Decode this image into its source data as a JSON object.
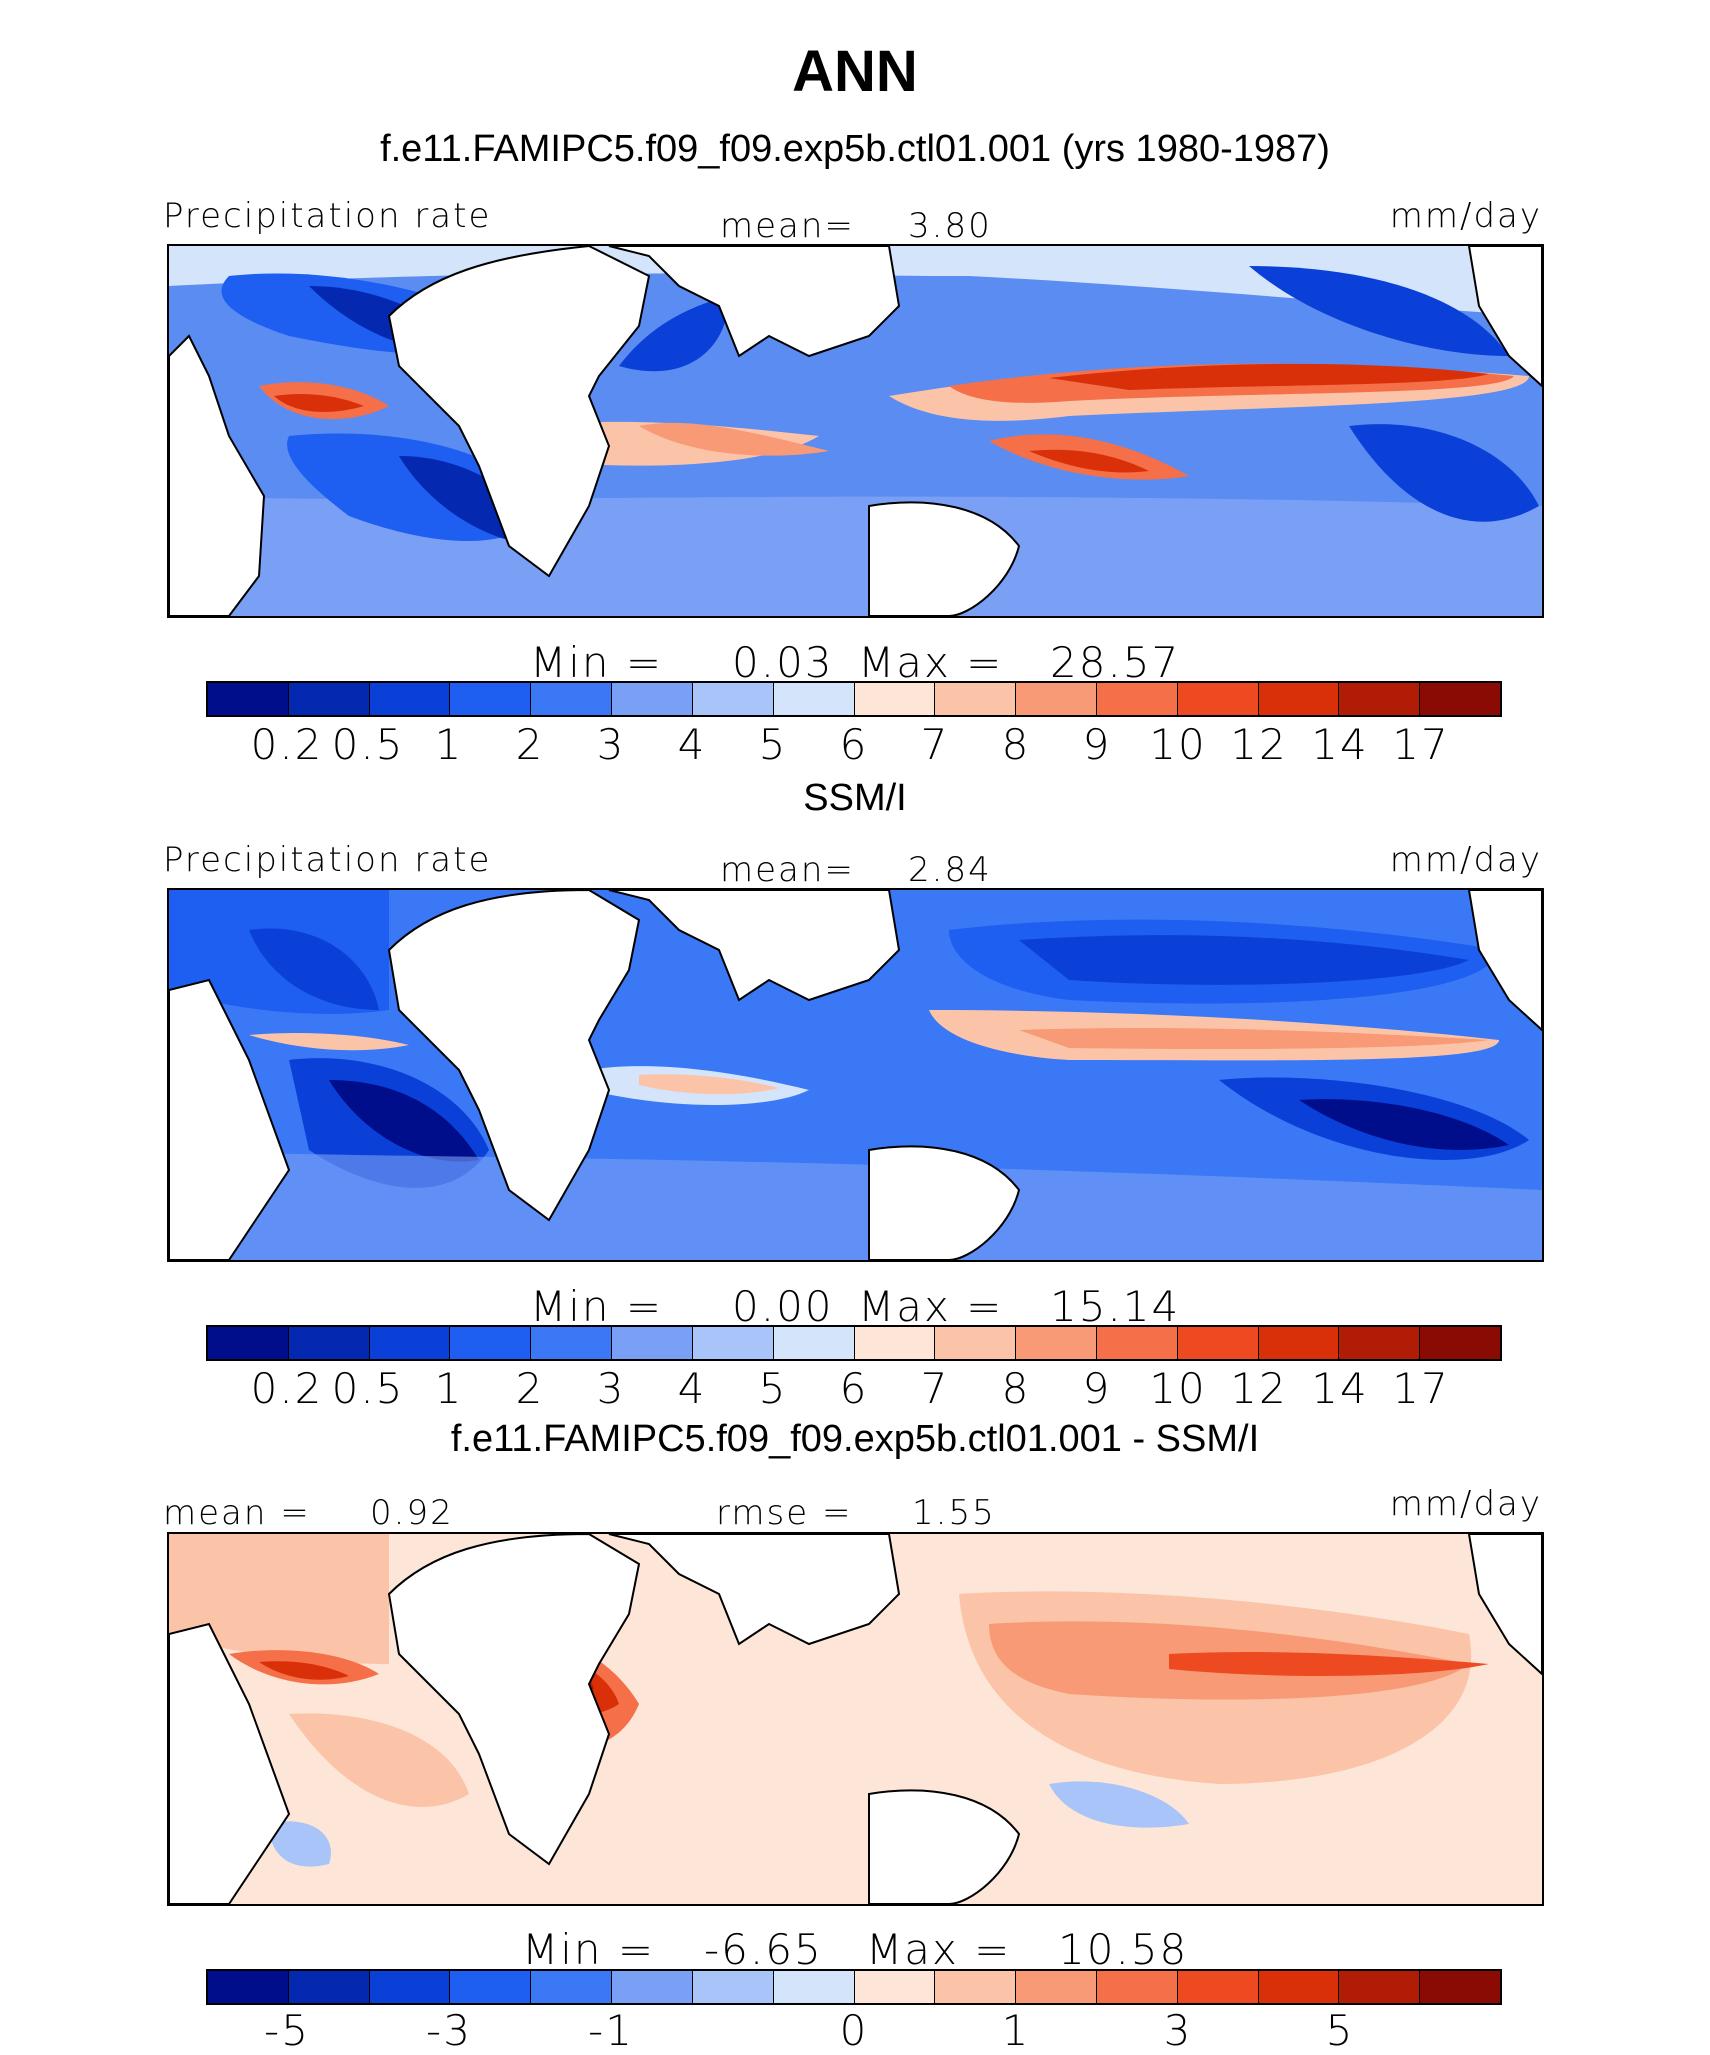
{
  "figure_title": "ANN",
  "panels": [
    {
      "title": "f.e11.FAMIPC5.f09_f09.exp5b.ctl01.001 (yrs 1980-1987)",
      "left_label": "Precipitation rate",
      "center_label": "mean=",
      "center_value": "3.80",
      "right_label": "mm/day",
      "min_label": "Min =",
      "min_value": "0.03",
      "max_label": "Max =",
      "max_value": "28.57"
    },
    {
      "title": "SSM/I",
      "left_label": "Precipitation rate",
      "center_label": "mean=",
      "center_value": "2.84",
      "right_label": "mm/day",
      "min_label": "Min =",
      "min_value": "0.00",
      "max_label": "Max =",
      "max_value": "15.14"
    },
    {
      "title": "f.e11.FAMIPC5.f09_f09.exp5b.ctl01.001 - SSM/I",
      "left_label": "mean =",
      "left_value": "0.92",
      "center_label": "rmse =",
      "center_value": "1.55",
      "right_label": "mm/day",
      "min_label": "Min =",
      "min_value": "-6.65",
      "max_label": "Max =",
      "max_value": "10.58"
    }
  ],
  "colorbar_precip": {
    "colors": [
      "#000e8c",
      "#0528b0",
      "#0a40d8",
      "#1e5ef0",
      "#3a78f5",
      "#7aa0f5",
      "#a8c4f8",
      "#d4e4fa",
      "#fde6d8",
      "#fbc4a8",
      "#f89a75",
      "#f57048",
      "#ee4a22",
      "#d9300a",
      "#b01c06",
      "#8a0a04"
    ],
    "ticks": [
      "0.2",
      "0.5",
      "1",
      "2",
      "3",
      "4",
      "5",
      "6",
      "7",
      "8",
      "9",
      "10",
      "12",
      "14",
      "17"
    ]
  },
  "colorbar_diff": {
    "colors": [
      "#000e8c",
      "#0528b0",
      "#0a40d8",
      "#1e5ef0",
      "#3a78f5",
      "#7aa0f5",
      "#a8c4f8",
      "#d4e4fa",
      "#fde6d8",
      "#fbc4a8",
      "#f89a75",
      "#f57048",
      "#ee4a22",
      "#d9300a",
      "#b01c06",
      "#8a0a04"
    ],
    "ticks": [
      "-5",
      "-3",
      "-1",
      "0",
      "1",
      "3",
      "5"
    ],
    "tick_boundaries": [
      1,
      3,
      5,
      8,
      10,
      12,
      14
    ]
  }
}
